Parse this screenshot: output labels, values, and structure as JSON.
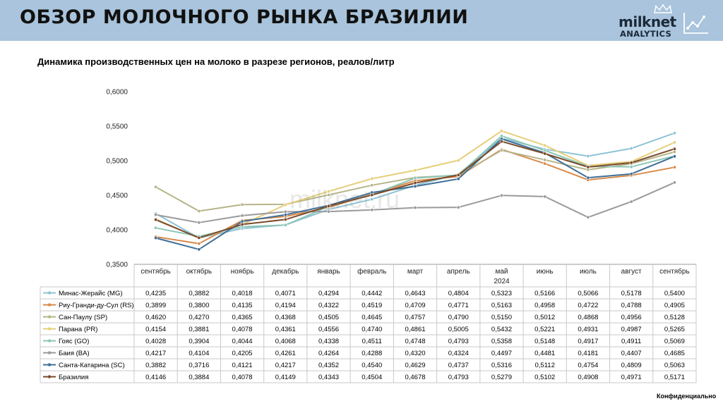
{
  "header": {
    "title": "ОБЗОР МОЛОЧНОГО РЫНКА БРАЗИЛИИ"
  },
  "logo": {
    "name": "milknet",
    "sub": "ANALYTICS"
  },
  "watermark": "milknet.ru",
  "footer": {
    "confidential": "Конфиденциально"
  },
  "chart_data": {
    "type": "line",
    "title": "Динамика производственных цен на молоко в разрезе регионов, реалов/литр",
    "categories": [
      "сентябрь",
      "октябрь",
      "ноябрь",
      "декабрь",
      "январь",
      "февраль",
      "март",
      "апрель",
      "май",
      "июнь",
      "июль",
      "август",
      "сентябрь"
    ],
    "year_label": "2024",
    "ylim": [
      0.35,
      0.6
    ],
    "yticks": [
      "0,3500",
      "0,4000",
      "0,4500",
      "0,5000",
      "0,5500",
      "0,6000"
    ],
    "ytick_values": [
      0.35,
      0.4,
      0.45,
      0.5,
      0.55,
      0.6
    ],
    "legend": "table-rows",
    "series": [
      {
        "name": "Минас-Жерайс (MG)",
        "color": "#8fc3d6",
        "values": [
          "0,4235",
          "0,3882",
          "0,4018",
          "0,4071",
          "0,4294",
          "0,4442",
          "0,4643",
          "0,4804",
          "0,5323",
          "0,5166",
          "0,5066",
          "0,5178",
          "0,5400"
        ]
      },
      {
        "name": "Риу-Гранди-ду-Сул (RS)",
        "color": "#d98a4a",
        "values": [
          "0,3899",
          "0,3800",
          "0,4135",
          "0,4194",
          "0,4322",
          "0,4519",
          "0,4709",
          "0,4771",
          "0,5163",
          "0,4958",
          "0,4722",
          "0,4788",
          "0,4905"
        ]
      },
      {
        "name": "Сан-Паулу (SP)",
        "color": "#b5b58a",
        "values": [
          "0,4620",
          "0,4270",
          "0,4365",
          "0,4368",
          "0,4505",
          "0,4645",
          "0,4757",
          "0,4790",
          "0,5150",
          "0,5012",
          "0,4868",
          "0,4956",
          "0,5128"
        ]
      },
      {
        "name": "Парана (PR)",
        "color": "#e6cf7a",
        "values": [
          "0,4154",
          "0,3881",
          "0,4078",
          "0,4361",
          "0,4556",
          "0,4740",
          "0,4861",
          "0,5005",
          "0,5432",
          "0,5221",
          "0,4931",
          "0,4987",
          "0,5265"
        ]
      },
      {
        "name": "Гояс (GO)",
        "color": "#8cc6b6",
        "values": [
          "0,4028",
          "0,3904",
          "0,4044",
          "0,4068",
          "0,4338",
          "0,4511",
          "0,4748",
          "0,4793",
          "0,5358",
          "0,5148",
          "0,4917",
          "0,4911",
          "0,5069"
        ]
      },
      {
        "name": "Баия (BA)",
        "color": "#9a9a9a",
        "values": [
          "0,4217",
          "0,4104",
          "0,4205",
          "0,4261",
          "0,4264",
          "0,4288",
          "0,4320",
          "0,4324",
          "0,4497",
          "0,4481",
          "0,4181",
          "0,4407",
          "0,4685"
        ]
      },
      {
        "name": "Санта-Катарина (SC)",
        "color": "#3f6f97",
        "values": [
          "0,3882",
          "0,3716",
          "0,4121",
          "0,4217",
          "0,4352",
          "0,4540",
          "0,4629",
          "0,4737",
          "0,5316",
          "0,5112",
          "0,4754",
          "0,4809",
          "0,5063"
        ]
      },
      {
        "name": "Бразилия",
        "color": "#7a4a2a",
        "values": [
          "0,4146",
          "0,3884",
          "0,4078",
          "0,4149",
          "0,4343",
          "0,4504",
          "0,4678",
          "0,4793",
          "0,5279",
          "0,5102",
          "0,4908",
          "0,4971",
          "0,5171"
        ]
      }
    ]
  }
}
